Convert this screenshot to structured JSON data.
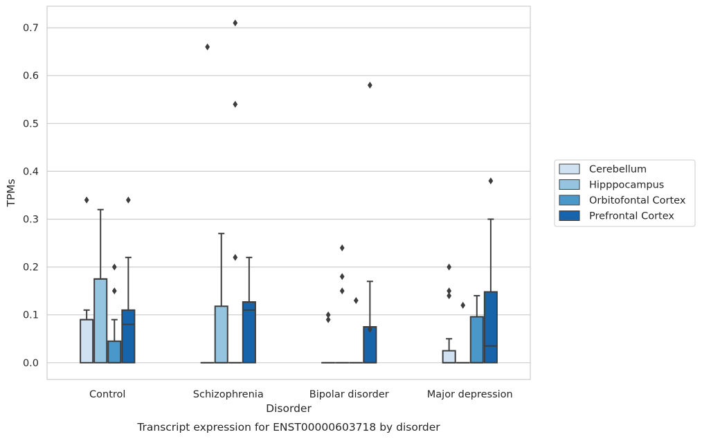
{
  "chart_data": {
    "type": "box",
    "title": "Transcript expression for ENST00000603718 by disorder",
    "xlabel": "Disorder",
    "ylabel": "TPMs",
    "ylim": [
      -0.035,
      0.745
    ],
    "yticks": [
      "0.0",
      "0.1",
      "0.2",
      "0.3",
      "0.4",
      "0.5",
      "0.6",
      "0.7"
    ],
    "grid": true,
    "legend_position": "right",
    "categories": [
      "Control",
      "Schizophrenia",
      "Bipolar disorder",
      "Major depression"
    ],
    "series": [
      {
        "name": "Cerebellum",
        "color": "#d0e1f2",
        "boxes": [
          {
            "min": 0,
            "q1": 0,
            "median": 0.09,
            "q3": 0.09,
            "max": 0.11,
            "outliers": [
              0.34
            ]
          },
          {
            "min": 0,
            "q1": 0,
            "median": 0,
            "q3": 0,
            "max": 0,
            "outliers": [
              0.66
            ]
          },
          {
            "min": 0,
            "q1": 0,
            "median": 0,
            "q3": 0,
            "max": 0,
            "outliers": [
              0.09,
              0.1
            ]
          },
          {
            "min": 0,
            "q1": 0,
            "median": 0,
            "q3": 0.025,
            "max": 0.05,
            "outliers": [
              0.14,
              0.15,
              0.2
            ]
          }
        ]
      },
      {
        "name": "Hipppocampus",
        "color": "#94c4df",
        "boxes": [
          {
            "min": 0,
            "q1": 0,
            "median": 0.175,
            "q3": 0.175,
            "max": 0.32,
            "outliers": []
          },
          {
            "min": 0,
            "q1": 0,
            "median": 0,
            "q3": 0.118,
            "max": 0.27,
            "outliers": []
          },
          {
            "min": 0,
            "q1": 0,
            "median": 0,
            "q3": 0,
            "max": 0,
            "outliers": [
              0.15,
              0.18,
              0.24
            ]
          },
          {
            "min": 0,
            "q1": 0,
            "median": 0,
            "q3": 0,
            "max": 0,
            "outliers": [
              0.12
            ]
          }
        ]
      },
      {
        "name": "Orbitofontal Cortex",
        "color": "#4a98c9",
        "boxes": [
          {
            "min": 0,
            "q1": 0,
            "median": 0,
            "q3": 0.045,
            "max": 0.09,
            "outliers": [
              0.15,
              0.2
            ]
          },
          {
            "min": 0,
            "q1": 0,
            "median": 0,
            "q3": 0,
            "max": 0,
            "outliers": [
              0.22,
              0.54,
              0.71
            ]
          },
          {
            "min": 0,
            "q1": 0,
            "median": 0,
            "q3": 0,
            "max": 0,
            "outliers": [
              0.13
            ]
          },
          {
            "min": 0,
            "q1": 0,
            "median": 0,
            "q3": 0.096,
            "max": 0.14,
            "outliers": []
          }
        ]
      },
      {
        "name": "Prefrontal Cortex",
        "color": "#1764ab",
        "boxes": [
          {
            "min": 0,
            "q1": 0,
            "median": 0.08,
            "q3": 0.11,
            "max": 0.22,
            "outliers": [
              0.34
            ]
          },
          {
            "min": 0,
            "q1": 0,
            "median": 0.11,
            "q3": 0.127,
            "max": 0.22,
            "outliers": []
          },
          {
            "min": 0,
            "q1": 0,
            "median": 0,
            "q3": 0.075,
            "max": 0.17,
            "outliers": [
              0.07,
              0.58
            ]
          },
          {
            "min": 0,
            "q1": 0,
            "median": 0.035,
            "q3": 0.148,
            "max": 0.3,
            "outliers": [
              0.38
            ]
          }
        ]
      }
    ]
  }
}
